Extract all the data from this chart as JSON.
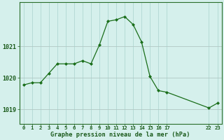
{
  "x": [
    0,
    1,
    2,
    3,
    4,
    5,
    6,
    7,
    8,
    9,
    10,
    11,
    12,
    13,
    14,
    15,
    16,
    17,
    22,
    23
  ],
  "y": [
    1019.78,
    1019.85,
    1019.85,
    1020.15,
    1020.45,
    1020.45,
    1020.45,
    1020.55,
    1020.45,
    1021.05,
    1021.8,
    1021.85,
    1021.95,
    1021.7,
    1021.15,
    1020.05,
    1019.6,
    1019.55,
    1019.05,
    1019.2
  ],
  "line_color": "#1a6e1a",
  "marker_color": "#1a6e1a",
  "background_color": "#d5f0ec",
  "grid_color_v": "#b0d8d2",
  "grid_color_h": "#b0c8c4",
  "axis_color": "#2a6e2a",
  "tick_label_color": "#1a5a1a",
  "xlabel": "Graphe pression niveau de la mer (hPa)",
  "xlabel_color": "#1a5a1a",
  "ytick_positions": [
    1019,
    1020,
    1021
  ],
  "ylim": [
    1018.55,
    1022.4
  ],
  "xlim": [
    -0.5,
    23.5
  ],
  "figwidth": 3.2,
  "figheight": 2.0,
  "dpi": 100
}
